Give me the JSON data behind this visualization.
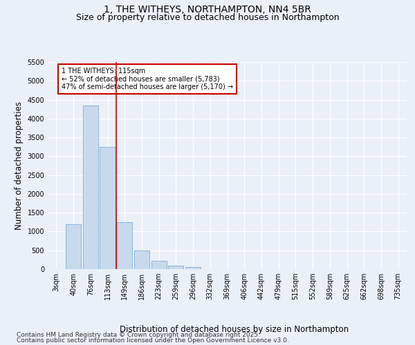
{
  "title_line1": "1, THE WITHEYS, NORTHAMPTON, NN4 5BR",
  "title_line2": "Size of property relative to detached houses in Northampton",
  "xlabel": "Distribution of detached houses by size in Northampton",
  "ylabel": "Number of detached properties",
  "categories": [
    "3sqm",
    "40sqm",
    "76sqm",
    "113sqm",
    "149sqm",
    "186sqm",
    "223sqm",
    "259sqm",
    "296sqm",
    "332sqm",
    "369sqm",
    "406sqm",
    "442sqm",
    "479sqm",
    "515sqm",
    "552sqm",
    "589sqm",
    "625sqm",
    "662sqm",
    "698sqm",
    "735sqm"
  ],
  "values": [
    0,
    1200,
    4350,
    3250,
    1250,
    500,
    220,
    100,
    60,
    0,
    0,
    0,
    0,
    0,
    0,
    0,
    0,
    0,
    0,
    0,
    0
  ],
  "bar_color": "#c9d9ed",
  "bar_edge_color": "#7aaed6",
  "vline_x_index": 3,
  "vline_color": "#cc0000",
  "annotation_text": "1 THE WITHEYS: 115sqm\n← 52% of detached houses are smaller (5,783)\n47% of semi-detached houses are larger (5,170) →",
  "annotation_box_color": "#ffffff",
  "annotation_border_color": "#cc0000",
  "ylim": [
    0,
    5500
  ],
  "yticks": [
    0,
    500,
    1000,
    1500,
    2000,
    2500,
    3000,
    3500,
    4000,
    4500,
    5000,
    5500
  ],
  "bg_color": "#eaf0f8",
  "plot_bg_color": "#eaf0f8",
  "footer_line1": "Contains HM Land Registry data © Crown copyright and database right 2025.",
  "footer_line2": "Contains public sector information licensed under the Open Government Licence v3.0.",
  "title_fontsize": 10,
  "subtitle_fontsize": 9,
  "axis_label_fontsize": 8.5,
  "tick_fontsize": 7,
  "footer_fontsize": 6.5
}
